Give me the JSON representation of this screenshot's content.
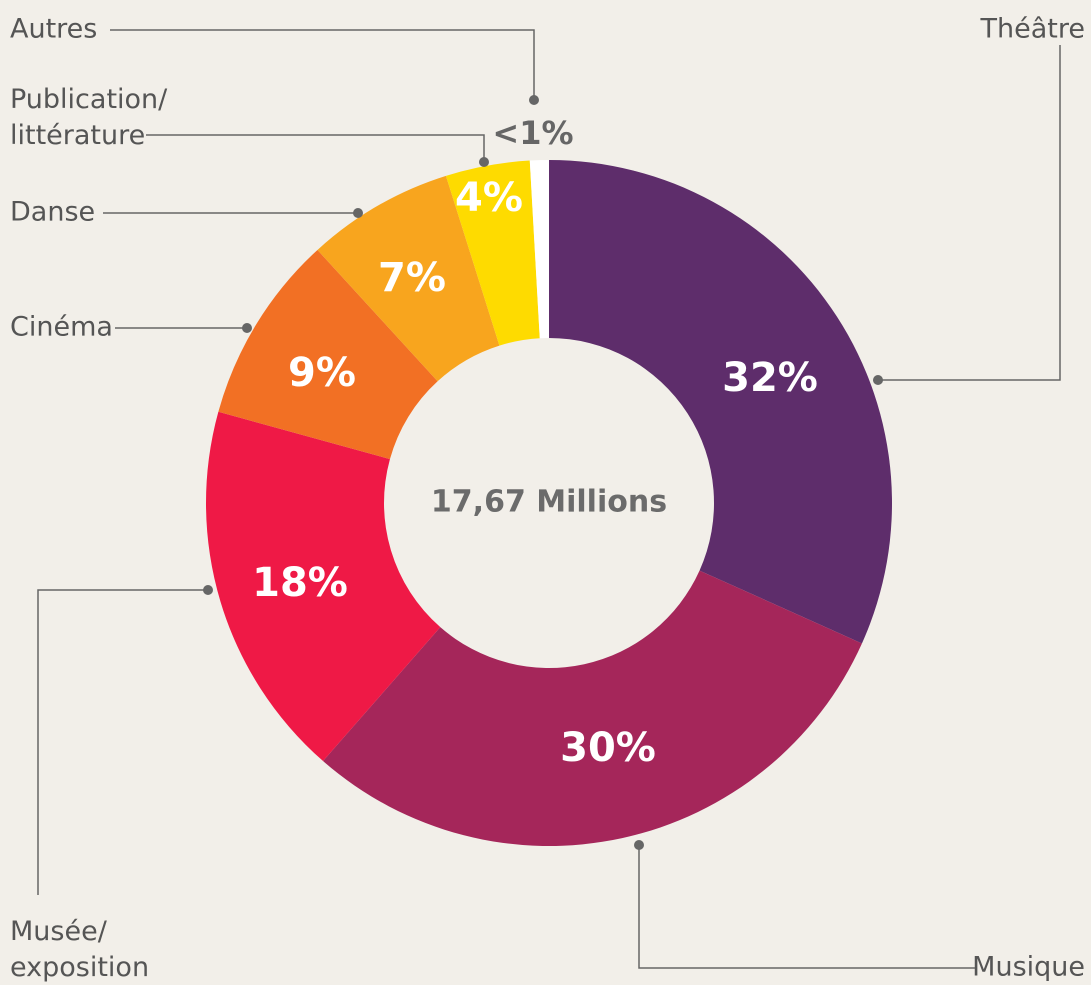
{
  "chart_data": {
    "type": "donut",
    "center_label": "17,67 Millions",
    "categories": [
      "Théâtre",
      "Musique",
      "Musée/\nexposition",
      "Cinéma",
      "Danse",
      "Publication/\nlittérature",
      "Autres"
    ],
    "values": [
      32,
      30,
      18,
      9,
      7,
      4,
      0.9
    ],
    "value_labels": [
      "32%",
      "30%",
      "18%",
      "9%",
      "7%",
      "4%",
      "<1%"
    ],
    "colors": [
      "#5e2d6b",
      "#a5265a",
      "#ef1946",
      "#f27024",
      "#f8a51e",
      "#fedb00",
      "#ffffff"
    ]
  }
}
